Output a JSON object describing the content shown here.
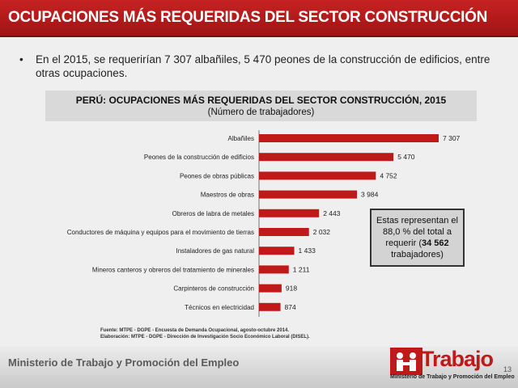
{
  "header": {
    "title": "OCUPACIONES MÁS REQUERIDAS DEL SECTOR CONSTRUCCIÓN"
  },
  "bullet": {
    "marker": "•",
    "text": "En el 2015, se requerirían 7 307 albañiles, 5 470 peones de la construcción de edificios, entre otras ocupaciones."
  },
  "chart_data": {
    "type": "bar",
    "orientation": "horizontal",
    "title": "PERÚ: OCUPACIONES MÁS REQUERIDAS DEL SECTOR CONSTRUCCIÓN, 2015",
    "subtitle": "(Número de trabajadores)",
    "categories": [
      "Albañiles",
      "Peones de la construcción de edificios",
      "Peones de obras públicas",
      "Maestros de obras",
      "Obreros de labra de metales",
      "Conductores de máquina  y equipos para el movimiento de tierras",
      "Instaladores de gas natural",
      "Mineros canteros y obreros del tratamiento de minerales",
      "Carpinteros de construcción",
      "Técnicos en electricidad"
    ],
    "values": [
      7307,
      5470,
      4752,
      3984,
      2443,
      2032,
      1433,
      1211,
      918,
      874
    ],
    "value_labels": [
      "7 307",
      "5 470",
      "4 752",
      "3 984",
      "2 443",
      "2 032",
      "1 433",
      "1 211",
      "918",
      "874"
    ],
    "xlim": [
      0,
      7307
    ],
    "bar_color": "#c0191a"
  },
  "note": {
    "line1": "Estas representan el 88,0 % del total a requerir (",
    "bold": "34 562",
    "line2": " trabajadores)"
  },
  "source": {
    "line1": "Fuente: MTPE - DGPE - Encuesta de Demanda Ocupacional, agosto-octubre 2014.",
    "line2": "Elaboración: MTPE - DGPE - Dirección de Investigación Socio Económico Laboral (DISEL)."
  },
  "footer": {
    "ministry": "Ministerio de Trabajo y Promoción del Empleo",
    "logo_word": "Trabajo",
    "logo_sub": "Ministerio de Trabajo y Promoción del Empleo",
    "page_number": "13"
  }
}
